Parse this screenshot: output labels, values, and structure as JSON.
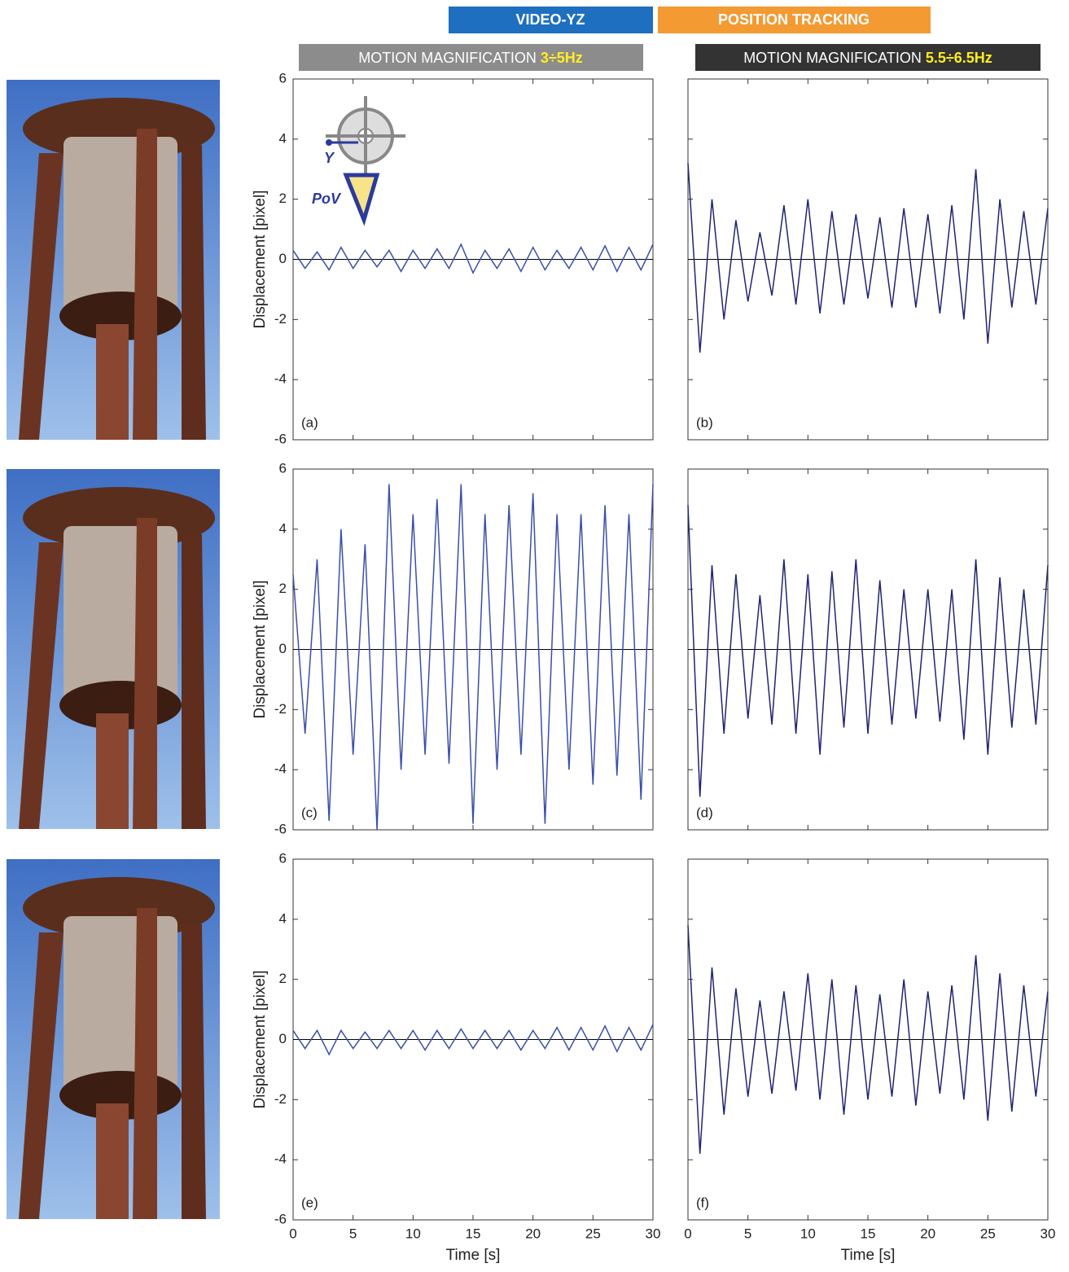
{
  "headers": {
    "video": "VIDEO-YZ",
    "tracking": "POSITION TRACKING",
    "mm_left": {
      "text": "MOTION MAGNIFICATION",
      "band": "3÷5Hz"
    },
    "mm_right": {
      "text": "MOTION MAGNIFICATION",
      "band": "5.5÷6.5Hz"
    }
  },
  "inset": {
    "axis": "Y",
    "view": "PoV"
  },
  "chart_data": [
    {
      "type": "line",
      "label": "(a)",
      "y_label": "Displacement [pixel]",
      "x": [
        0,
        1,
        2,
        3,
        4,
        5,
        6,
        7,
        8,
        9,
        10,
        11,
        12,
        13,
        14,
        15,
        16,
        17,
        18,
        19,
        20,
        21,
        22,
        23,
        24,
        25,
        26,
        27,
        28,
        29,
        30
      ],
      "series": [
        {
          "color": "#3a4fa8",
          "values": [
            0.3,
            -0.3,
            0.25,
            -0.35,
            0.4,
            -0.3,
            0.3,
            -0.25,
            0.3,
            -0.4,
            0.3,
            -0.3,
            0.35,
            -0.3,
            0.5,
            -0.45,
            0.3,
            -0.3,
            0.35,
            -0.4,
            0.4,
            -0.35,
            0.3,
            -0.3,
            0.4,
            -0.35,
            0.45,
            -0.4,
            0.4,
            -0.35,
            0.5
          ]
        }
      ],
      "xlim": [
        0,
        30
      ],
      "ylim": [
        -6,
        6
      ],
      "xticks": [
        0,
        5,
        10,
        15,
        20,
        25,
        30
      ],
      "yticks": [
        -6,
        -4,
        -2,
        0,
        2,
        4,
        6
      ]
    },
    {
      "type": "line",
      "label": "(b)",
      "x": [
        0,
        1,
        2,
        3,
        4,
        5,
        6,
        7,
        8,
        9,
        10,
        11,
        12,
        13,
        14,
        15,
        16,
        17,
        18,
        19,
        20,
        21,
        22,
        23,
        24,
        25,
        26,
        27,
        28,
        29,
        30
      ],
      "series": [
        {
          "color": "#1f2470",
          "values": [
            3.2,
            -3.1,
            2.0,
            -2.0,
            1.3,
            -1.4,
            0.9,
            -1.2,
            1.8,
            -1.5,
            2.0,
            -1.8,
            1.6,
            -1.5,
            1.5,
            -1.3,
            1.4,
            -1.6,
            1.7,
            -1.6,
            1.5,
            -1.8,
            1.8,
            -2.0,
            3.0,
            -2.8,
            2.0,
            -1.6,
            1.6,
            -1.5,
            1.7
          ]
        }
      ],
      "xlim": [
        0,
        30
      ],
      "ylim": [
        -6,
        6
      ],
      "xticks": [
        0,
        5,
        10,
        15,
        20,
        25,
        30
      ],
      "yticks": [
        -6,
        -4,
        -2,
        0,
        2,
        4,
        6
      ]
    },
    {
      "type": "line",
      "label": "(c)",
      "y_label": "Displacement [pixel]",
      "x": [
        0,
        1,
        2,
        3,
        4,
        5,
        6,
        7,
        8,
        9,
        10,
        11,
        12,
        13,
        14,
        15,
        16,
        17,
        18,
        19,
        20,
        21,
        22,
        23,
        24,
        25,
        26,
        27,
        28,
        29,
        30
      ],
      "series": [
        {
          "color": "#3a4fa8",
          "values": [
            2.5,
            -2.8,
            3.0,
            -5.7,
            4.0,
            -3.5,
            3.5,
            -6.0,
            5.5,
            -4.0,
            4.5,
            -3.5,
            5.0,
            -3.8,
            5.5,
            -5.8,
            4.5,
            -4.0,
            4.8,
            -3.5,
            5.2,
            -5.8,
            4.5,
            -4.0,
            4.5,
            -4.5,
            4.8,
            -4.2,
            4.5,
            -5.0,
            5.5
          ]
        }
      ],
      "xlim": [
        0,
        30
      ],
      "ylim": [
        -6,
        6
      ],
      "xticks": [
        0,
        5,
        10,
        15,
        20,
        25,
        30
      ],
      "yticks": [
        -6,
        -4,
        -2,
        0,
        2,
        4,
        6
      ]
    },
    {
      "type": "line",
      "label": "(d)",
      "x": [
        0,
        1,
        2,
        3,
        4,
        5,
        6,
        7,
        8,
        9,
        10,
        11,
        12,
        13,
        14,
        15,
        16,
        17,
        18,
        19,
        20,
        21,
        22,
        23,
        24,
        25,
        26,
        27,
        28,
        29,
        30
      ],
      "series": [
        {
          "color": "#1f2470",
          "values": [
            4.8,
            -4.9,
            2.8,
            -2.8,
            2.5,
            -2.3,
            1.8,
            -2.5,
            3.0,
            -2.8,
            2.5,
            -3.5,
            2.6,
            -2.6,
            3.0,
            -2.8,
            2.3,
            -2.5,
            2.0,
            -2.3,
            2.0,
            -2.4,
            2.0,
            -3.0,
            3.0,
            -3.5,
            2.4,
            -2.6,
            2.0,
            -2.5,
            2.8
          ]
        }
      ],
      "xlim": [
        0,
        30
      ],
      "ylim": [
        -6,
        6
      ],
      "xticks": [
        0,
        5,
        10,
        15,
        20,
        25,
        30
      ],
      "yticks": [
        -6,
        -4,
        -2,
        0,
        2,
        4,
        6
      ]
    },
    {
      "type": "line",
      "label": "(e)",
      "y_label": "Displacement [pixel]",
      "x_label": "Time [s]",
      "x": [
        0,
        1,
        2,
        3,
        4,
        5,
        6,
        7,
        8,
        9,
        10,
        11,
        12,
        13,
        14,
        15,
        16,
        17,
        18,
        19,
        20,
        21,
        22,
        23,
        24,
        25,
        26,
        27,
        28,
        29,
        30
      ],
      "series": [
        {
          "color": "#3a4fa8",
          "values": [
            0.3,
            -0.3,
            0.3,
            -0.5,
            0.3,
            -0.3,
            0.25,
            -0.3,
            0.3,
            -0.3,
            0.3,
            -0.35,
            0.3,
            -0.3,
            0.35,
            -0.3,
            0.3,
            -0.3,
            0.3,
            -0.35,
            0.3,
            -0.3,
            0.4,
            -0.35,
            0.4,
            -0.35,
            0.45,
            -0.4,
            0.4,
            -0.35,
            0.5
          ]
        }
      ],
      "xlim": [
        0,
        30
      ],
      "ylim": [
        -6,
        6
      ],
      "xticks": [
        0,
        5,
        10,
        15,
        20,
        25,
        30
      ],
      "yticks": [
        -6,
        -4,
        -2,
        0,
        2,
        4,
        6
      ]
    },
    {
      "type": "line",
      "label": "(f)",
      "x_label": "Time [s]",
      "x": [
        0,
        1,
        2,
        3,
        4,
        5,
        6,
        7,
        8,
        9,
        10,
        11,
        12,
        13,
        14,
        15,
        16,
        17,
        18,
        19,
        20,
        21,
        22,
        23,
        24,
        25,
        26,
        27,
        28,
        29,
        30
      ],
      "series": [
        {
          "color": "#1f2470",
          "values": [
            3.8,
            -3.8,
            2.4,
            -2.5,
            1.7,
            -1.9,
            1.3,
            -1.8,
            1.6,
            -1.7,
            2.2,
            -2.0,
            2.0,
            -2.5,
            1.8,
            -2.0,
            1.5,
            -1.9,
            2.0,
            -2.2,
            1.6,
            -1.8,
            1.8,
            -2.0,
            2.8,
            -2.7,
            2.2,
            -2.4,
            1.8,
            -1.9,
            1.6
          ]
        }
      ],
      "xlim": [
        0,
        30
      ],
      "ylim": [
        -6,
        6
      ],
      "xticks": [
        0,
        5,
        10,
        15,
        20,
        25,
        30
      ],
      "yticks": [
        -6,
        -4,
        -2,
        0,
        2,
        4,
        6
      ]
    }
  ]
}
